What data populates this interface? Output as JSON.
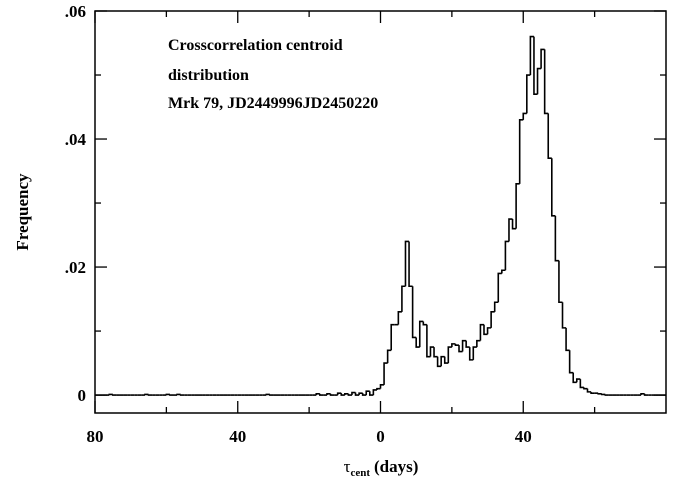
{
  "chart_data": {
    "type": "histogram",
    "y_label": "Frequency",
    "x_label": {
      "symbol": "τ",
      "subscript": "cent",
      "unit": "(days)"
    },
    "annotations": [
      "Crosscorrelation centroid",
      "distribution",
      "Mrk 79, JD2449996JD2450220"
    ],
    "color": "#000000",
    "xlim": [
      -80,
      80
    ],
    "ylim": [
      -0.0028,
      0.06
    ],
    "xticks": [
      {
        "value": -80,
        "label": "80"
      },
      {
        "value": -40,
        "label": "40"
      },
      0,
      40
    ],
    "yticks": [
      0,
      {
        "value": 0.02,
        "label": ".02"
      },
      {
        "value": 0.04,
        "label": ".04"
      },
      {
        "value": 0.06,
        "label": ".06"
      }
    ],
    "bins": [
      -80,
      -79,
      -78,
      -77,
      -76,
      -75,
      -74,
      -73,
      -72,
      -71,
      -70,
      -69,
      -68,
      -67,
      -66,
      -65,
      -64,
      -63,
      -62,
      -61,
      -60,
      -59,
      -58,
      -57,
      -56,
      -55,
      -54,
      -53,
      -52,
      -51,
      -50,
      -49,
      -48,
      -47,
      -46,
      -45,
      -44,
      -43,
      -42,
      -41,
      -40,
      -39,
      -38,
      -37,
      -36,
      -35,
      -34,
      -33,
      -32,
      -31,
      -30,
      -29,
      -28,
      -27,
      -26,
      -25,
      -24,
      -23,
      -22,
      -21,
      -20,
      -19,
      -18,
      -17,
      -16,
      -15,
      -14,
      -13,
      -12,
      -11,
      -10,
      -9,
      -8,
      -7,
      -6,
      -5,
      -4,
      -3,
      -2,
      -1,
      0,
      1,
      2,
      3,
      4,
      5,
      6,
      7,
      8,
      9,
      10,
      11,
      12,
      13,
      14,
      15,
      16,
      17,
      18,
      19,
      20,
      21,
      22,
      23,
      24,
      25,
      26,
      27,
      28,
      29,
      30,
      31,
      32,
      33,
      34,
      35,
      36,
      37,
      38,
      39,
      40,
      41,
      42,
      43,
      44,
      45,
      46,
      47,
      48,
      49,
      50,
      51,
      52,
      53,
      54,
      55,
      56,
      57,
      58,
      59,
      60,
      61,
      62,
      63,
      64,
      65,
      66,
      67,
      68,
      69,
      70,
      71,
      72,
      73,
      74,
      75,
      76,
      77,
      78,
      79,
      80
    ],
    "counts": [
      0,
      0,
      0,
      0,
      0.0001,
      0,
      0,
      0,
      0,
      0,
      0,
      0,
      0,
      0,
      0.0001,
      0,
      0,
      0,
      0,
      0,
      0.0001,
      0,
      0,
      0.0001,
      0,
      0,
      0,
      0,
      0,
      0,
      0,
      0,
      0,
      0,
      0,
      0,
      0,
      0,
      0,
      0,
      0,
      0,
      0,
      0,
      0,
      0,
      0,
      0,
      0.0001,
      0,
      0,
      0,
      0,
      0,
      0,
      0,
      0,
      0,
      0,
      0,
      0,
      0,
      0.0002,
      0,
      0,
      0.0002,
      0,
      0,
      0.0003,
      0,
      0.0002,
      0,
      0.0004,
      0,
      0.0003,
      0,
      0.0006,
      0,
      0.0008,
      0.001,
      0.0016,
      0.005,
      0.007,
      0.011,
      0.011,
      0.013,
      0.017,
      0.024,
      0.017,
      0.009,
      0.0075,
      0.0115,
      0.011,
      0.006,
      0.0075,
      0.006,
      0.0045,
      0.006,
      0.005,
      0.0075,
      0.008,
      0.0078,
      0.0068,
      0.0085,
      0.0075,
      0.0055,
      0.0075,
      0.0085,
      0.011,
      0.0095,
      0.0105,
      0.013,
      0.0145,
      0.019,
      0.0195,
      0.024,
      0.0275,
      0.026,
      0.033,
      0.043,
      0.044,
      0.05,
      0.056,
      0.047,
      0.051,
      0.054,
      0.044,
      0.037,
      0.028,
      0.021,
      0.0145,
      0.0105,
      0.007,
      0.0035,
      0.002,
      0.0025,
      0.0012,
      0.001,
      0.0005,
      0.0003,
      0.0003,
      0.0002,
      0.0001,
      0,
      0,
      0,
      0,
      0,
      0,
      0,
      0,
      0,
      0,
      0.0002,
      0,
      0,
      0,
      0,
      0,
      0
    ]
  }
}
